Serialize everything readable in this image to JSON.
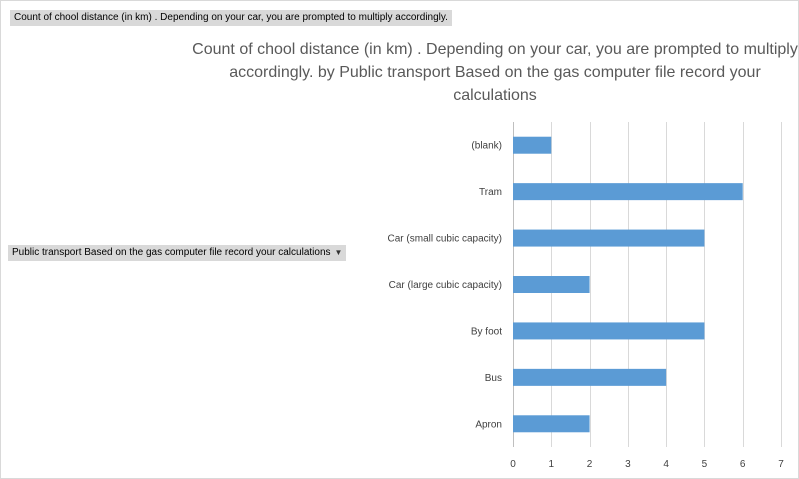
{
  "pivot": {
    "value_field_label": "Count of chool distance (in km)  . Depending on your car, you are prompted to multiply  accordingly.",
    "axis_field_label": "Public transport Based on the gas computer file record your calculations"
  },
  "chart_data": {
    "type": "bar",
    "orientation": "horizontal",
    "title": "Count of chool distance (in km) . Depending on your car, you are prompted to multiply accordingly. by Public transport Based on the gas computer file record your calculations",
    "categories": [
      "(blank)",
      "Tram",
      "Car (small cubic capacity)",
      "Car (large cubic capacity)",
      "By foot",
      "Bus",
      "Apron"
    ],
    "values": [
      1,
      6,
      5,
      2,
      5,
      4,
      2
    ],
    "xlim": [
      0,
      7
    ],
    "xticks": [
      0,
      1,
      2,
      3,
      4,
      5,
      6,
      7
    ],
    "xlabel": "",
    "ylabel": "",
    "grid": true,
    "legend": "none",
    "bar_color": "#5b9bd5",
    "grid_color": "#d9d9d9"
  }
}
